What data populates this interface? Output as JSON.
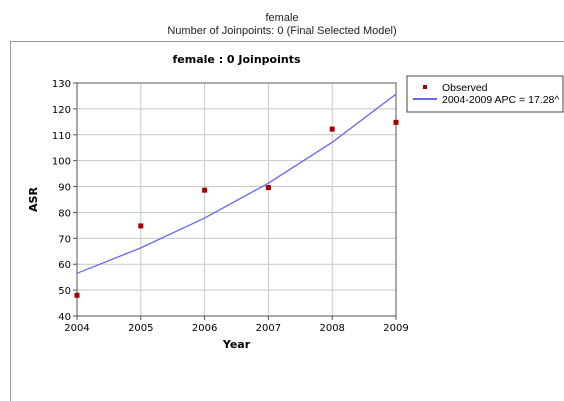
{
  "header": {
    "line1": "female",
    "line2": "Number of Joinpoints:  0 (Final Selected Model)"
  },
  "chart_data": {
    "type": "scatter",
    "title": "female : 0 Joinpoints",
    "xlabel": "Year",
    "ylabel": "ASR",
    "xlim": [
      2004,
      2009
    ],
    "ylim": [
      40,
      130
    ],
    "x_ticks": [
      "2004",
      "2005",
      "2006",
      "2007",
      "2008",
      "2009"
    ],
    "y_ticks": [
      "40",
      "50",
      "60",
      "70",
      "80",
      "90",
      "100",
      "110",
      "120",
      "130"
    ],
    "grid": true,
    "legend_position": "right",
    "series": [
      {
        "name": "Observed",
        "kind": "markers",
        "color": "#a50000",
        "x": [
          2004,
          2005,
          2006,
          2007,
          2008,
          2009
        ],
        "y": [
          48.0,
          74.8,
          88.6,
          89.6,
          112.2,
          114.8
        ]
      },
      {
        "name": "2004-2009 APC  = 17.28^",
        "kind": "line",
        "color": "#6666ee",
        "x": [
          2004,
          2005,
          2006,
          2007,
          2008,
          2009
        ],
        "y": [
          56.5,
          66.3,
          77.8,
          91.3,
          107.1,
          125.7
        ]
      }
    ]
  }
}
